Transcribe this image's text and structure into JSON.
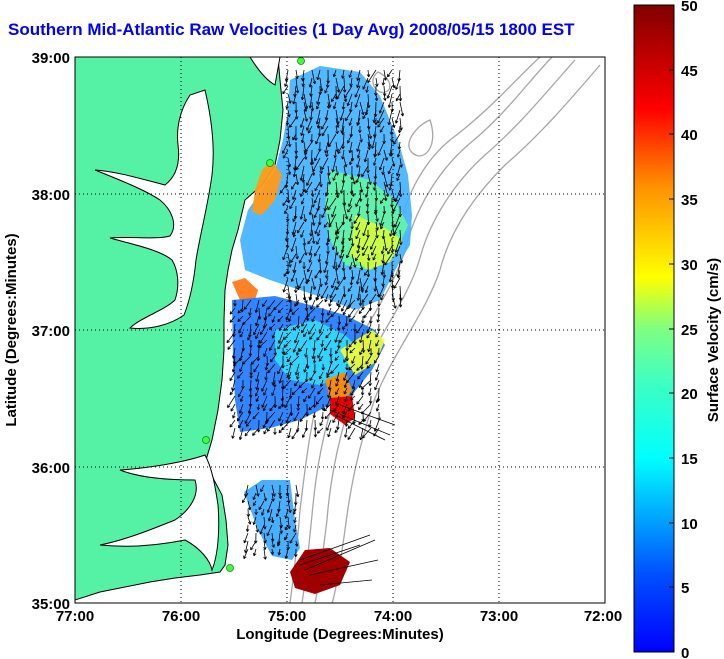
{
  "title": "Southern Mid-Atlantic Raw Velocities (1 Day Avg) 2008/05/15 1800 EST",
  "map": {
    "xlabel": "Longitude (Degrees:Minutes)",
    "ylabel": "Latitude (Degrees:Minutes)",
    "lon_range": [
      -77,
      -72
    ],
    "lat_range": [
      35,
      39
    ],
    "x_ticks": [
      "77:00",
      "76:00",
      "75:00",
      "74:00",
      "73:00",
      "72:00"
    ],
    "y_ticks": [
      "35:00",
      "36:00",
      "37:00",
      "38:00",
      "39:00"
    ],
    "grid": "dotted",
    "colors": {
      "land": "#55f2a6",
      "water": "#ffffff",
      "bathymetry_contour": "#a6a6a6",
      "coast_outline": "#000000",
      "vector": "#000000",
      "title": "#0000ff",
      "station_marker": "#3cff3c"
    },
    "stations_count_visible": 5
  },
  "colorbar": {
    "label": "Surface Velocity (cm/s)",
    "min": 0,
    "max": 50,
    "ticks": [
      "0",
      "5",
      "10",
      "15",
      "20",
      "25",
      "30",
      "35",
      "40",
      "45",
      "50"
    ],
    "colormap": "jet"
  }
}
